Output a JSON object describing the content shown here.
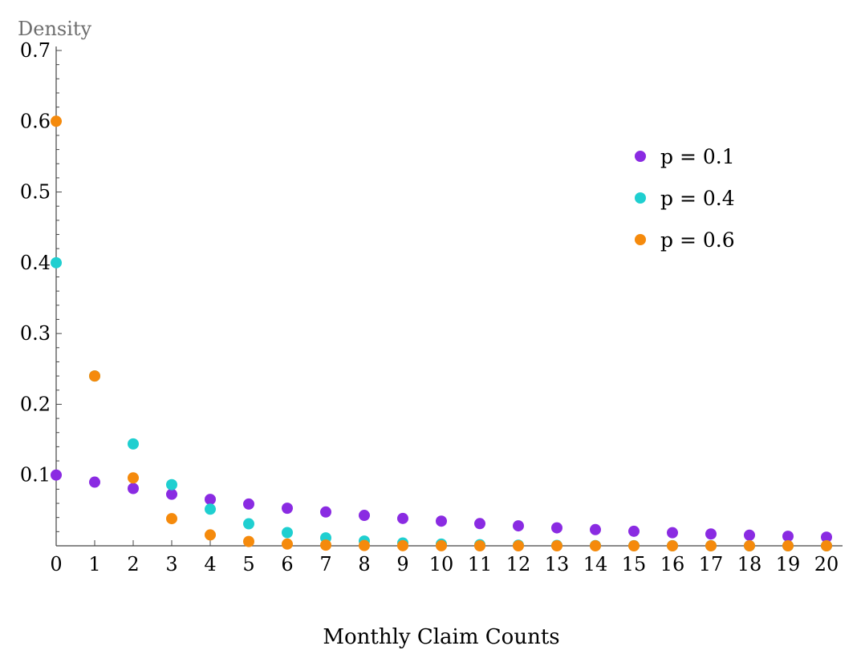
{
  "chart_data": {
    "type": "scatter",
    "title": "",
    "xlabel": "Monthly Claim Counts",
    "ylabel": "Density",
    "xlim": [
      0,
      20
    ],
    "ylim": [
      0,
      0.7
    ],
    "x_ticks": [
      "0",
      "1",
      "2",
      "3",
      "4",
      "5",
      "6",
      "7",
      "8",
      "9",
      "10",
      "11",
      "12",
      "13",
      "14",
      "15",
      "16",
      "17",
      "18",
      "19",
      "20"
    ],
    "y_ticks": [
      "0.1",
      "0.2",
      "0.3",
      "0.4",
      "0.5",
      "0.6",
      "0.7"
    ],
    "y_tick_values": [
      0.1,
      0.2,
      0.3,
      0.4,
      0.5,
      0.6,
      0.7
    ],
    "grid": false,
    "legend_position": "top-right",
    "x": [
      0,
      1,
      2,
      3,
      4,
      5,
      6,
      7,
      8,
      9,
      10,
      11,
      12,
      13,
      14,
      15,
      16,
      17,
      18,
      19,
      20
    ],
    "series": [
      {
        "name": "p = 0.1",
        "color": "#8a2be2",
        "values": [
          0.1,
          0.09,
          0.081,
          0.0729,
          0.0656,
          0.059,
          0.0531,
          0.0478,
          0.043,
          0.0387,
          0.0349,
          0.0314,
          0.0282,
          0.0254,
          0.0229,
          0.0206,
          0.0185,
          0.0167,
          0.015,
          0.0135,
          0.0122
        ]
      },
      {
        "name": "p = 0.4",
        "color": "#1fcfd0",
        "values": [
          0.4,
          0.24,
          0.144,
          0.0864,
          0.0518,
          0.0311,
          0.0187,
          0.0112,
          0.0067,
          0.004,
          0.0024,
          0.0015,
          0.0009,
          0.0005,
          0.0003,
          0.0002,
          0.0001,
          0.0001,
          0.0,
          0.0,
          0.0
        ]
      },
      {
        "name": "p = 0.6",
        "color": "#f58a0c",
        "values": [
          0.6,
          0.24,
          0.096,
          0.0384,
          0.0154,
          0.0061,
          0.0025,
          0.001,
          0.0004,
          0.0002,
          0.0001,
          0.0,
          0.0,
          0.0,
          0.0,
          0.0,
          0.0,
          0.0,
          0.0,
          0.0,
          0.0
        ]
      }
    ]
  }
}
